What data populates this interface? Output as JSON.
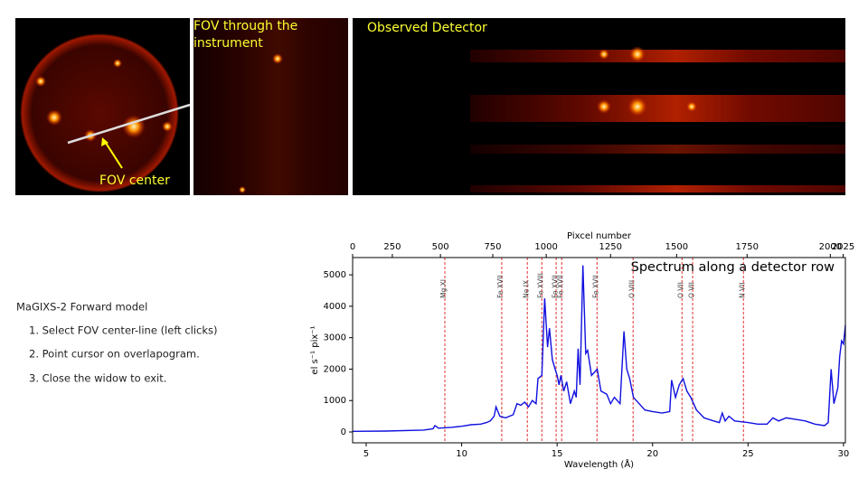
{
  "panels": {
    "fov_title": "FOV through the instrument",
    "detector_title": "Observed Detector",
    "fov_center": "FOV center"
  },
  "instructions": {
    "title": "MaGIXS-2 Forward model",
    "steps": [
      "1. Select FOV center-line (left clicks)",
      "2. Point cursor on overlapogram.",
      "3. Close the widow to exit."
    ]
  },
  "chart_data": {
    "type": "line",
    "title": "Spectrum along a detector row",
    "xlabel": "Wavelength (Å)",
    "ylabel": "el s⁻¹ pix⁻¹",
    "x2label": "Pixcel number",
    "x": [
      4.3,
      6,
      8,
      8.5,
      8.6,
      8.8,
      9.5,
      10,
      10.5,
      11,
      11.3,
      11.5,
      11.7,
      11.8,
      12,
      12.3,
      12.7,
      12.9,
      13.1,
      13.3,
      13.5,
      13.7,
      13.9,
      14.0,
      14.2,
      14.35,
      14.5,
      14.6,
      14.75,
      14.9,
      15.0,
      15.1,
      15.2,
      15.35,
      15.5,
      15.7,
      15.9,
      16.0,
      16.1,
      16.2,
      16.35,
      16.5,
      16.6,
      16.8,
      17.1,
      17.3,
      17.6,
      17.8,
      18.0,
      18.3,
      18.5,
      18.65,
      18.8,
      19.0,
      19.3,
      19.6,
      20,
      20.5,
      20.9,
      21.0,
      21.2,
      21.4,
      21.6,
      21.8,
      22.0,
      22.3,
      22.7,
      23.2,
      23.5,
      23.65,
      23.8,
      24.0,
      24.3,
      25,
      25.5,
      26,
      26.3,
      26.6,
      27,
      27.5,
      28,
      28.5,
      29,
      29.2,
      29.35,
      29.5,
      29.7,
      29.8,
      29.9,
      30.0,
      30.1
    ],
    "series": [
      {
        "name": "Spectrum",
        "color": "#1010e0",
        "values": [
          20,
          30,
          60,
          100,
          200,
          120,
          150,
          180,
          230,
          250,
          300,
          350,
          500,
          800,
          500,
          450,
          550,
          900,
          850,
          950,
          800,
          1000,
          900,
          1700,
          1800,
          4250,
          2700,
          3300,
          2300,
          2000,
          1800,
          1500,
          1800,
          1300,
          1600,
          900,
          1300,
          1100,
          2650,
          1500,
          5300,
          2500,
          2600,
          1800,
          2000,
          1300,
          1200,
          900,
          1100,
          900,
          3200,
          2000,
          1700,
          1100,
          900,
          700,
          650,
          600,
          650,
          1650,
          1100,
          1500,
          1700,
          1300,
          1100,
          700,
          450,
          350,
          300,
          600,
          350,
          500,
          350,
          300,
          250,
          250,
          450,
          350,
          450,
          400,
          350,
          250,
          200,
          300,
          2000,
          900,
          1400,
          2400,
          2900,
          2800,
          3400
        ]
      }
    ],
    "xlim": [
      4.29,
      30.1
    ],
    "xticks": [
      5,
      10,
      15,
      20,
      25,
      30
    ],
    "ylim": [
      -345,
      5550
    ],
    "yticks": [
      0,
      1000,
      2000,
      3000,
      4000,
      5000
    ],
    "x2ticks": [
      0,
      250,
      500,
      750,
      1000,
      1250,
      1500,
      1750,
      2000,
      2025
    ],
    "x2tick_wavelengths": [
      4.29,
      6.37,
      8.89,
      11.63,
      14.43,
      17.8,
      21.26,
      24.95,
      29.31,
      29.98
    ],
    "annotations": [
      {
        "label": "Mg XI",
        "x": 9.12
      },
      {
        "label": "Fe XVII",
        "x": 12.1
      },
      {
        "label": "Ne IX",
        "x": 13.44
      },
      {
        "label": "Fe XVIII",
        "x": 14.2
      },
      {
        "label": "Fe XVII",
        "x": 14.95
      },
      {
        "label": "Fe XVII",
        "x": 15.24
      },
      {
        "label": "Fe XVII",
        "x": 17.09
      },
      {
        "label": "O VIII",
        "x": 18.98
      },
      {
        "label": "O VII",
        "x": 21.54
      },
      {
        "label": "O VII",
        "x": 22.1
      },
      {
        "label": "N VII",
        "x": 24.76
      }
    ],
    "annotation_color": "#e03030"
  }
}
